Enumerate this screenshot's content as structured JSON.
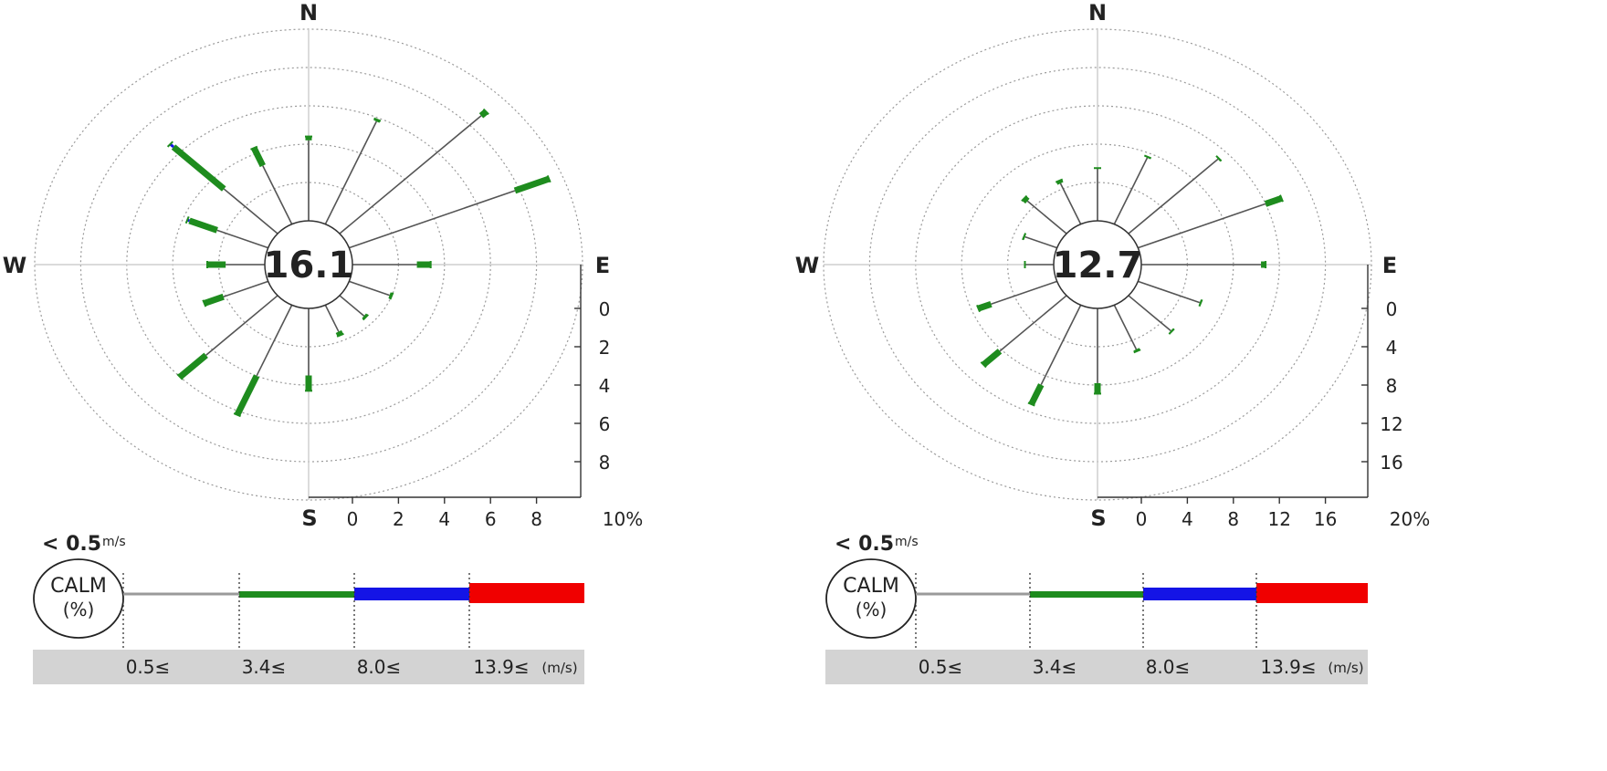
{
  "chart_data": [
    {
      "type": "windrose",
      "calm_percent": "16.1",
      "directions": [
        "N",
        "NNE",
        "NE",
        "ENE",
        "E",
        "ESE",
        "SE",
        "SSE",
        "S",
        "SSW",
        "SW",
        "WSW",
        "W",
        "WNW",
        "NW",
        "NNW"
      ],
      "segments": [
        {
          "dir": "N",
          "calm_to_34": 4.2,
          "s34_80": 0.2,
          "s80_139": 0.0,
          "s139": 0.0
        },
        {
          "dir": "NNE",
          "calm_to_34": 5.8,
          "s34_80": 0.1,
          "s80_139": 0.0,
          "s139": 0.0
        },
        {
          "dir": "NE",
          "calm_to_34": 8.7,
          "s34_80": 0.3,
          "s80_139": 0.0,
          "s139": 0.0
        },
        {
          "dir": "ENE",
          "calm_to_34": 7.8,
          "s34_80": 1.6,
          "s80_139": 0.0,
          "s139": 0.0
        },
        {
          "dir": "E",
          "calm_to_34": 2.8,
          "s34_80": 0.6,
          "s80_139": 0.0,
          "s139": 0.0
        },
        {
          "dir": "ESE",
          "calm_to_34": 1.9,
          "s34_80": 0.1,
          "s80_139": 0.0,
          "s139": 0.0
        },
        {
          "dir": "SE",
          "calm_to_34": 1.5,
          "s34_80": 0.1,
          "s80_139": 0.0,
          "s139": 0.0
        },
        {
          "dir": "SSE",
          "calm_to_34": 1.5,
          "s34_80": 0.2,
          "s80_139": 0.0,
          "s139": 0.0
        },
        {
          "dir": "S",
          "calm_to_34": 3.5,
          "s34_80": 0.8,
          "s80_139": 0.0,
          "s139": 0.0
        },
        {
          "dir": "SSW",
          "calm_to_34": 4.0,
          "s34_80": 2.2,
          "s80_139": 0.0,
          "s139": 0.0
        },
        {
          "dir": "SW",
          "calm_to_34": 4.4,
          "s34_80": 1.6,
          "s80_139": 0.0,
          "s139": 0.0
        },
        {
          "dir": "WSW",
          "calm_to_34": 2.1,
          "s34_80": 0.9,
          "s80_139": 0.0,
          "s139": 0.0
        },
        {
          "dir": "W",
          "calm_to_34": 1.7,
          "s34_80": 0.8,
          "s80_139": 0.0,
          "s139": 0.0
        },
        {
          "dir": "WNW",
          "calm_to_34": 2.4,
          "s34_80": 1.3,
          "s80_139": 0.1,
          "s139": 0.0
        },
        {
          "dir": "NW",
          "calm_to_34": 3.3,
          "s34_80": 3.1,
          "s80_139": 0.2,
          "s139": 0.0
        },
        {
          "dir": "NNW",
          "calm_to_34": 3.3,
          "s34_80": 1.0,
          "s80_139": 0.0,
          "s139": 0.0
        }
      ],
      "ticks": [
        "0",
        "2",
        "4",
        "6",
        "8"
      ],
      "tick_values": [
        0,
        2,
        4,
        6,
        8
      ],
      "max_label": "10%",
      "max_value": 10,
      "rings": 5
    },
    {
      "type": "windrose",
      "calm_percent": "12.7",
      "directions": [
        "N",
        "NNE",
        "NE",
        "ENE",
        "E",
        "ESE",
        "SE",
        "SSE",
        "S",
        "SSW",
        "SW",
        "WSW",
        "W",
        "WNW",
        "NW",
        "NNW"
      ],
      "segments": [
        {
          "dir": "N",
          "calm_to_34": 5.5,
          "s34_80": 0.0,
          "s80_139": 0.0,
          "s139": 0.0
        },
        {
          "dir": "NNE",
          "calm_to_34": 7.5,
          "s34_80": 0.1,
          "s80_139": 0.0,
          "s139": 0.0
        },
        {
          "dir": "NE",
          "calm_to_34": 11.0,
          "s34_80": 0.1,
          "s80_139": 0.0,
          "s139": 0.0
        },
        {
          "dir": "ENE",
          "calm_to_34": 12.0,
          "s34_80": 1.5,
          "s80_139": 0.0,
          "s139": 0.0
        },
        {
          "dir": "E",
          "calm_to_34": 10.4,
          "s34_80": 0.4,
          "s80_139": 0.0,
          "s139": 0.0
        },
        {
          "dir": "ESE",
          "calm_to_34": 5.8,
          "s34_80": 0.1,
          "s80_139": 0.0,
          "s139": 0.0
        },
        {
          "dir": "SE",
          "calm_to_34": 5.2,
          "s34_80": 0.1,
          "s80_139": 0.0,
          "s139": 0.0
        },
        {
          "dir": "SSE",
          "calm_to_34": 5.0,
          "s34_80": 0.2,
          "s80_139": 0.0,
          "s139": 0.0
        },
        {
          "dir": "S",
          "calm_to_34": 7.8,
          "s34_80": 1.1,
          "s80_139": 0.0,
          "s139": 0.0
        },
        {
          "dir": "SSW",
          "calm_to_34": 9.0,
          "s34_80": 2.2,
          "s80_139": 0.0,
          "s139": 0.0
        },
        {
          "dir": "SW",
          "calm_to_34": 8.2,
          "s34_80": 2.0,
          "s80_139": 0.0,
          "s139": 0.0
        },
        {
          "dir": "WSW",
          "calm_to_34": 6.2,
          "s34_80": 1.2,
          "s80_139": 0.0,
          "s139": 0.0
        },
        {
          "dir": "W",
          "calm_to_34": 2.5,
          "s34_80": 0.0,
          "s80_139": 0.0,
          "s139": 0.0
        },
        {
          "dir": "WNW",
          "calm_to_34": 3.0,
          "s34_80": 0.1,
          "s80_139": 0.0,
          "s139": 0.0
        },
        {
          "dir": "NW",
          "calm_to_34": 4.8,
          "s34_80": 0.4,
          "s80_139": 0.0,
          "s139": 0.0
        },
        {
          "dir": "NNW",
          "calm_to_34": 4.6,
          "s34_80": 0.3,
          "s80_139": 0.0,
          "s139": 0.0
        }
      ],
      "ticks": [
        "0",
        "4",
        "8",
        "12",
        "16"
      ],
      "tick_values": [
        0,
        4,
        8,
        12,
        16
      ],
      "max_label": "20%",
      "max_value": 20,
      "rings": 5
    }
  ],
  "legend": {
    "calm_threshold": "< 0.5",
    "calm_unit": "m/s",
    "calm_label": "CALM",
    "calm_pct": "(%)",
    "bins": [
      "0.5≤",
      "3.4≤",
      "8.0≤",
      "13.9≤"
    ],
    "unit": "(m/s)",
    "colors": {
      "calm_line": "#9a9a9a",
      "low": "#1e8c1e",
      "mid": "#1414e6",
      "high": "#f00000"
    }
  },
  "compass": {
    "n": "N",
    "e": "E",
    "s": "S",
    "w": "W"
  }
}
